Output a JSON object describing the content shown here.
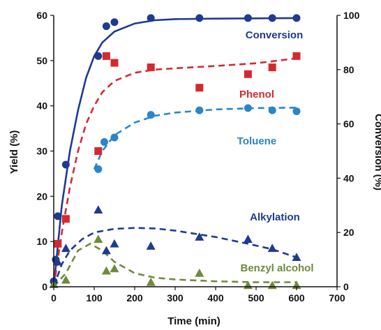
{
  "chart_data": {
    "type": "scatter",
    "title": "",
    "xlabel": "Time (min)",
    "ylabel_left": "Yield (%)",
    "ylabel_right": "Conversion (%)",
    "xlim": [
      0,
      700
    ],
    "ylim_left": [
      0,
      60
    ],
    "ylim_right": [
      0,
      100
    ],
    "x_ticks": [
      "0",
      "100",
      "200",
      "300",
      "400",
      "500",
      "600",
      "700"
    ],
    "y_ticks_left": [
      "0",
      "10",
      "20",
      "30",
      "40",
      "50",
      "60"
    ],
    "y_ticks_right": [
      "0",
      "20",
      "40",
      "60",
      "80",
      "100"
    ],
    "grid": false,
    "series": [
      {
        "name": "Conversion",
        "axis": "right",
        "color": "#1f3a8f",
        "marker": "circle",
        "fit_line": "solid",
        "points": [
          [
            0,
            2
          ],
          [
            5,
            10
          ],
          [
            10,
            26
          ],
          [
            30,
            45
          ],
          [
            110,
            85
          ],
          [
            130,
            96
          ],
          [
            150,
            97.5
          ],
          [
            240,
            99
          ],
          [
            360,
            99
          ],
          [
            480,
            99
          ],
          [
            540,
            99
          ],
          [
            600,
            99
          ]
        ],
        "fit": [
          [
            0,
            0
          ],
          [
            20,
            30
          ],
          [
            40,
            50
          ],
          [
            60,
            65
          ],
          [
            80,
            77
          ],
          [
            100,
            85
          ],
          [
            120,
            90
          ],
          [
            150,
            94
          ],
          [
            200,
            97
          ],
          [
            250,
            98.2
          ],
          [
            300,
            98.6
          ],
          [
            400,
            98.8
          ],
          [
            500,
            98.9
          ],
          [
            600,
            99
          ]
        ]
      },
      {
        "name": "Phenol",
        "axis": "left",
        "color": "#d42a2f",
        "marker": "square",
        "fit_line": "dashed",
        "points": [
          [
            10,
            9.5
          ],
          [
            30,
            15
          ],
          [
            110,
            30
          ],
          [
            130,
            51
          ],
          [
            150,
            49.5
          ],
          [
            240,
            48.5
          ],
          [
            360,
            44
          ],
          [
            480,
            47
          ],
          [
            540,
            48.5
          ],
          [
            600,
            51
          ]
        ],
        "fit": [
          [
            0,
            0
          ],
          [
            20,
            12
          ],
          [
            40,
            22
          ],
          [
            60,
            30
          ],
          [
            80,
            36
          ],
          [
            100,
            40
          ],
          [
            120,
            43
          ],
          [
            150,
            45.5
          ],
          [
            200,
            47.3
          ],
          [
            250,
            48
          ],
          [
            300,
            48.3
          ],
          [
            400,
            48.8
          ],
          [
            500,
            49.4
          ],
          [
            600,
            50.5
          ]
        ]
      },
      {
        "name": "Toluene",
        "axis": "left",
        "color": "#2b85c8",
        "marker": "circle",
        "fit_line": "dashed",
        "points": [
          [
            110,
            26
          ],
          [
            125,
            32
          ],
          [
            150,
            33
          ],
          [
            240,
            38
          ],
          [
            360,
            39
          ],
          [
            480,
            39.5
          ],
          [
            540,
            39
          ],
          [
            600,
            38.8
          ]
        ],
        "fit": [
          [
            100,
            26
          ],
          [
            120,
            30
          ],
          [
            150,
            33.5
          ],
          [
            200,
            36.3
          ],
          [
            250,
            37.8
          ],
          [
            300,
            38.5
          ],
          [
            400,
            39.2
          ],
          [
            500,
            39.5
          ],
          [
            600,
            39.6
          ]
        ]
      },
      {
        "name": "Alkylation",
        "axis": "left",
        "color": "#1f3a8f",
        "marker": "triangle",
        "fit_line": "dashed",
        "points": [
          [
            0,
            0.5
          ],
          [
            10,
            5.5
          ],
          [
            30,
            8.5
          ],
          [
            110,
            17
          ],
          [
            130,
            8
          ],
          [
            150,
            9.5
          ],
          [
            240,
            9
          ],
          [
            360,
            11
          ],
          [
            480,
            10.5
          ],
          [
            540,
            8.5
          ],
          [
            600,
            6.5
          ]
        ],
        "fit": [
          [
            0,
            0
          ],
          [
            20,
            5
          ],
          [
            40,
            8
          ],
          [
            70,
            10.5
          ],
          [
            100,
            12
          ],
          [
            150,
            12.8
          ],
          [
            200,
            13
          ],
          [
            250,
            12.9
          ],
          [
            300,
            12.4
          ],
          [
            400,
            11
          ],
          [
            480,
            9.5
          ],
          [
            540,
            8.3
          ],
          [
            600,
            6.5
          ]
        ]
      },
      {
        "name": "Benzyl alcohol",
        "axis": "left",
        "color": "#6f8a3c",
        "marker": "triangle",
        "fit_line": "dashed",
        "points": [
          [
            0,
            0.5
          ],
          [
            30,
            1.5
          ],
          [
            110,
            10.5
          ],
          [
            130,
            3.5
          ],
          [
            150,
            4
          ],
          [
            240,
            1
          ],
          [
            360,
            3
          ],
          [
            480,
            0.3
          ],
          [
            540,
            0.3
          ],
          [
            600,
            0.3
          ]
        ],
        "fit": [
          [
            0,
            0
          ],
          [
            30,
            3
          ],
          [
            60,
            8
          ],
          [
            90,
            9.5
          ],
          [
            120,
            8
          ],
          [
            150,
            5.5
          ],
          [
            200,
            3
          ],
          [
            250,
            2
          ],
          [
            300,
            1.6
          ],
          [
            400,
            1.2
          ],
          [
            500,
            1
          ],
          [
            600,
            1
          ]
        ]
      }
    ]
  }
}
